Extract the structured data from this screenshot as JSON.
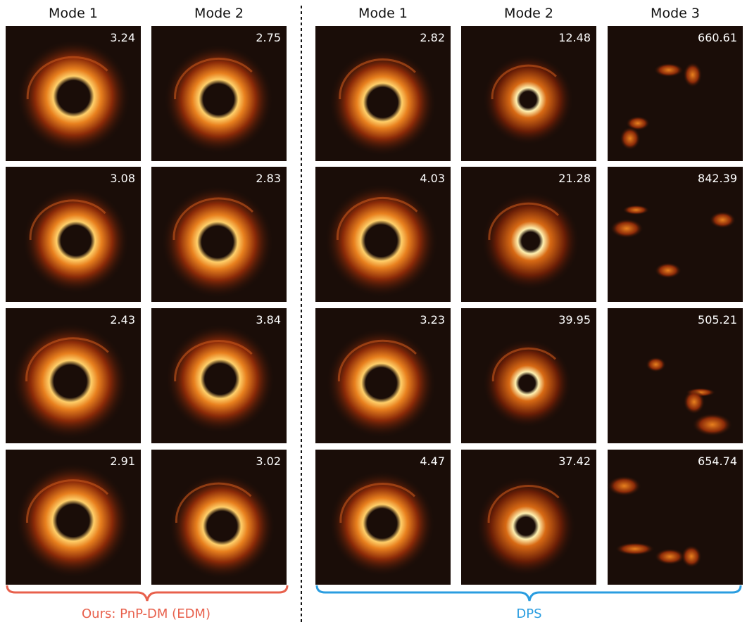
{
  "groups": [
    {
      "caption": "Ours: PnP-DM (EDM)",
      "columns": [
        "Mode 1",
        "Mode 2"
      ],
      "rows": [
        [
          "3.24",
          "2.75"
        ],
        [
          "3.08",
          "2.83"
        ],
        [
          "2.43",
          "3.84"
        ],
        [
          "2.91",
          "3.02"
        ]
      ]
    },
    {
      "caption": "DPS",
      "columns": [
        "Mode 1",
        "Mode 2",
        "Mode 3"
      ],
      "rows": [
        [
          "2.82",
          "12.48",
          "660.61"
        ],
        [
          "4.03",
          "21.28",
          "842.39"
        ],
        [
          "3.23",
          "39.95",
          "505.21"
        ],
        [
          "4.47",
          "37.42",
          "654.74"
        ]
      ]
    }
  ]
}
